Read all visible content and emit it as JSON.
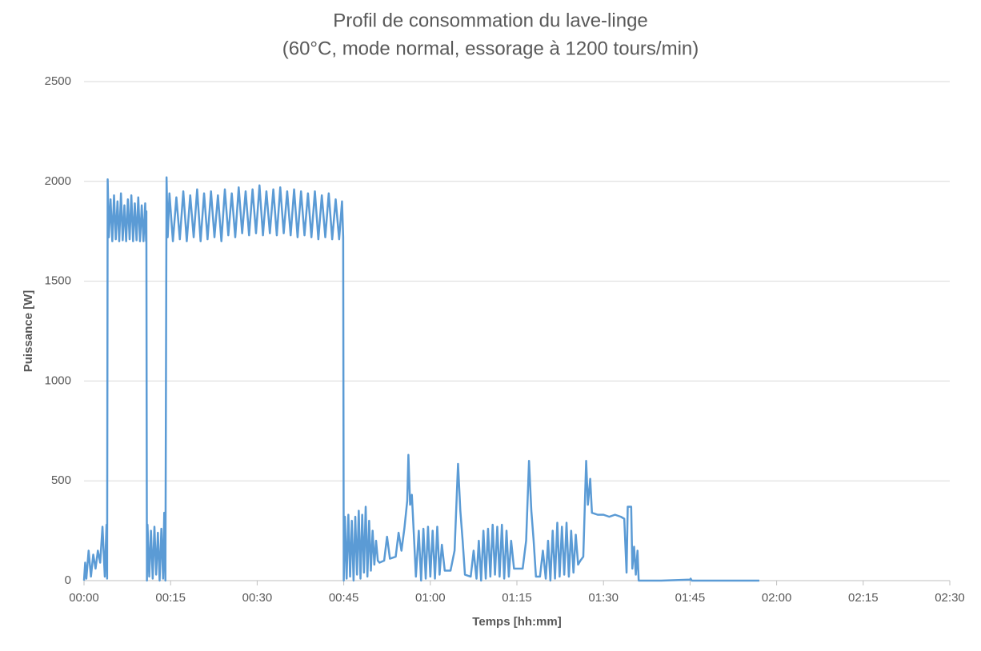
{
  "chart_data": {
    "type": "line",
    "title": "Profil de consommation du lave-linge",
    "subtitle": "(60°C, mode normal, essorage à 1200 tours/min)",
    "x_label": "Temps [hh:mm]",
    "y_label": "Puissance [W]",
    "xlim": [
      0,
      150
    ],
    "xticks": [
      {
        "value": 0,
        "label": "00:00"
      },
      {
        "value": 15,
        "label": "00:15"
      },
      {
        "value": 30,
        "label": "00:30"
      },
      {
        "value": 45,
        "label": "00:45"
      },
      {
        "value": 60,
        "label": "01:00"
      },
      {
        "value": 75,
        "label": "01:15"
      },
      {
        "value": 90,
        "label": "01:30"
      },
      {
        "value": 105,
        "label": "01:45"
      },
      {
        "value": 120,
        "label": "02:00"
      },
      {
        "value": 135,
        "label": "02:15"
      },
      {
        "value": 150,
        "label": "02:30"
      }
    ],
    "ylim": [
      0,
      2500
    ],
    "yticks": [
      0,
      500,
      1000,
      1500,
      2000,
      2500
    ],
    "grid": true,
    "x": [
      0,
      0.2,
      0.4,
      0.8,
      1.2,
      1.6,
      2,
      2.4,
      2.8,
      3.2,
      3.6,
      3.9,
      4.0,
      4.1,
      4.3,
      4.6,
      4.9,
      5.2,
      5.5,
      5.8,
      6.1,
      6.4,
      6.7,
      7,
      7.3,
      7.6,
      7.9,
      8.2,
      8.5,
      8.8,
      9.1,
      9.4,
      9.7,
      10,
      10.3,
      10.6,
      10.75,
      10.8,
      10.9,
      11,
      11.3,
      11.6,
      11.9,
      12.2,
      12.5,
      12.8,
      13.1,
      13.4,
      13.7,
      13.9,
      14.1,
      14.3,
      14.5,
      14.8,
      15.4,
      16,
      16.6,
      17.2,
      17.8,
      18.4,
      19,
      19.6,
      20.2,
      20.8,
      21.4,
      22,
      22.6,
      23.2,
      23.8,
      24.4,
      25,
      25.6,
      26.2,
      26.8,
      27.4,
      28,
      28.6,
      29.2,
      29.8,
      30.4,
      31,
      31.6,
      32.2,
      32.8,
      33.4,
      34,
      34.6,
      35.2,
      35.8,
      36.4,
      37,
      37.6,
      38.2,
      38.8,
      39.4,
      40,
      40.6,
      41.2,
      41.8,
      42.4,
      43,
      43.6,
      44.2,
      44.7,
      44.9,
      45,
      45.2,
      45.5,
      45.8,
      46.1,
      46.4,
      46.7,
      47,
      47.3,
      47.6,
      47.9,
      48.2,
      48.5,
      48.8,
      49.1,
      49.4,
      49.7,
      50,
      50.3,
      50.6,
      50.9,
      51.2,
      52,
      52.5,
      53,
      54,
      54.5,
      55,
      55.5,
      56,
      56.2,
      56.5,
      56.8,
      57.2,
      57.5,
      58,
      58.4,
      58.8,
      59.2,
      59.6,
      60,
      60.4,
      60.8,
      61.2,
      61.6,
      62,
      62.5,
      63.5,
      64.2,
      64.8,
      65.2,
      65.6,
      66,
      67,
      67.5,
      68,
      68.4,
      68.8,
      69.2,
      69.6,
      70,
      70.4,
      70.8,
      71.2,
      71.6,
      72,
      72.4,
      72.8,
      73.2,
      73.6,
      74,
      74.5,
      76,
      76.6,
      77.1,
      77.5,
      77.9,
      78.3,
      79,
      79.5,
      80,
      80.4,
      80.8,
      81.2,
      81.6,
      82,
      82.4,
      82.8,
      83.2,
      83.6,
      84,
      84.4,
      84.8,
      85.2,
      85.6,
      86,
      86.5,
      87,
      87.3,
      87.7,
      88,
      89,
      90,
      91,
      92,
      93,
      93.6,
      94,
      94.2,
      94.8,
      95,
      95.3,
      95.6,
      95.9,
      96.1,
      100,
      105,
      105.1,
      105.3,
      110,
      117
    ],
    "series": [
      {
        "color": "#5b9bd5",
        "values": [
          0,
          90,
          10,
          150,
          20,
          130,
          60,
          150,
          90,
          270,
          20,
          280,
          10,
          2010,
          1720,
          1910,
          1700,
          1930,
          1710,
          1900,
          1700,
          1940,
          1705,
          1880,
          1700,
          1910,
          1710,
          1930,
          1700,
          1890,
          1705,
          1920,
          1700,
          1880,
          1700,
          1890,
          1700,
          1850,
          0,
          280,
          20,
          250,
          10,
          270,
          30,
          240,
          0,
          260,
          10,
          340,
          0,
          2020,
          1720,
          1940,
          1700,
          1920,
          1710,
          1950,
          1700,
          1930,
          1720,
          1960,
          1700,
          1940,
          1710,
          1950,
          1720,
          1930,
          1700,
          1960,
          1730,
          1940,
          1720,
          1970,
          1740,
          1950,
          1730,
          1960,
          1740,
          1980,
          1730,
          1950,
          1740,
          1960,
          1730,
          1970,
          1740,
          1950,
          1730,
          1960,
          1720,
          1950,
          1730,
          1940,
          1720,
          1950,
          1710,
          1930,
          1720,
          1940,
          1710,
          1910,
          1710,
          1900,
          1720,
          0,
          320,
          10,
          330,
          20,
          300,
          0,
          320,
          30,
          350,
          10,
          330,
          40,
          370,
          20,
          300,
          50,
          250,
          80,
          200,
          100,
          90,
          100,
          220,
          110,
          120,
          240,
          150,
          260,
          400,
          630,
          380,
          430,
          200,
          20,
          250,
          0,
          260,
          10,
          270,
          20,
          250,
          10,
          270,
          30,
          180,
          50,
          50,
          150,
          585,
          350,
          200,
          30,
          20,
          150,
          10,
          200,
          0,
          250,
          10,
          260,
          20,
          280,
          30,
          270,
          20,
          280,
          10,
          250,
          20,
          200,
          60,
          60,
          200,
          600,
          350,
          200,
          20,
          20,
          150,
          10,
          200,
          0,
          250,
          10,
          290,
          20,
          270,
          30,
          290,
          20,
          250,
          40,
          230,
          80,
          100,
          120,
          600,
          380,
          510,
          340,
          330,
          330,
          320,
          330,
          320,
          310,
          40,
          370,
          370,
          60,
          170,
          30,
          150,
          0,
          0,
          5,
          10,
          0,
          0,
          0
        ]
      }
    ]
  }
}
